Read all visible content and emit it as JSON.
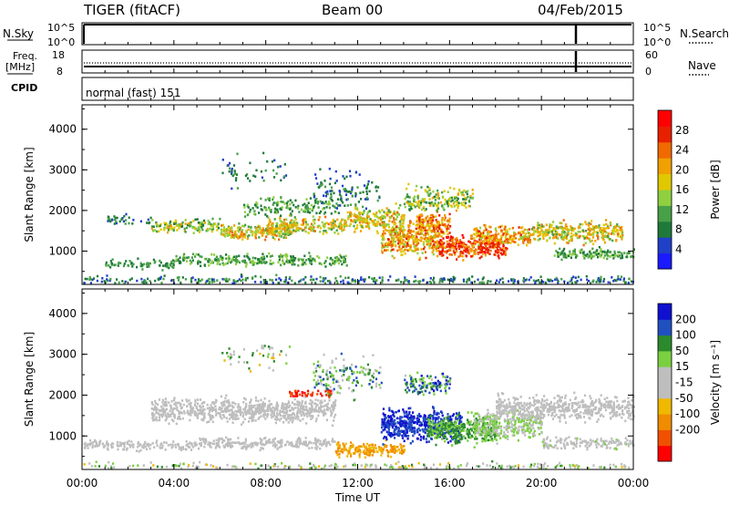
{
  "header": {
    "left": "TIGER (fitACF)",
    "center": "Beam 00",
    "right": "04/Feb/2015"
  },
  "params": {
    "nsky_label": "N.Sky",
    "nsky_ticks": [
      "10^5",
      "10^0"
    ],
    "nsearch_label": "N.Search",
    "freq_label_1": "Freq.",
    "freq_label_2": "[MHz]",
    "freq_ticks": [
      "18",
      "8"
    ],
    "nave_label": "Nave",
    "nave_ticks": [
      "60",
      "0"
    ],
    "cpid_label": "CPID",
    "cpid_text": "normal (fast) 151"
  },
  "colors": {
    "power": [
      "#1a1aff",
      "#2040c8",
      "#1f7a3a",
      "#48a048",
      "#8fd040",
      "#e0c800",
      "#f0a000",
      "#f06a00",
      "#e82000",
      "#ff0000"
    ],
    "velocity": [
      "#ff0000",
      "#f05000",
      "#f08c00",
      "#f0b800",
      "#bebebe",
      "#bebebe",
      "#7ad040",
      "#2c8a2c",
      "#2050c0",
      "#1010d0"
    ]
  },
  "chart_data": [
    {
      "type": "heatmap",
      "name": "power",
      "ylabel": "Slant Range [km]",
      "yticks": [
        "4000",
        "3000",
        "2000",
        "1000"
      ],
      "ylim": [
        180,
        4600
      ],
      "colorbar_label": "Power [dB]",
      "colorbar_ticks": [
        "28",
        "24",
        "20",
        "16",
        "12",
        "8",
        "4"
      ],
      "zlim": [
        0,
        32
      ]
    },
    {
      "type": "heatmap",
      "name": "velocity",
      "ylabel": "Slant Range [km]",
      "yticks": [
        "4000",
        "3000",
        "2000",
        "1000"
      ],
      "ylim": [
        180,
        4600
      ],
      "colorbar_label": "Velocity [m s⁻¹]",
      "colorbar_ticks": [
        "200",
        "100",
        "50",
        "15",
        "-15",
        "-50",
        "-100",
        "-200"
      ],
      "zlim": [
        -250,
        250
      ],
      "xlabel": "Time UT",
      "xticks": [
        "00:00",
        "04:00",
        "08:00",
        "12:00",
        "16:00",
        "20:00",
        "00:00"
      ]
    }
  ]
}
